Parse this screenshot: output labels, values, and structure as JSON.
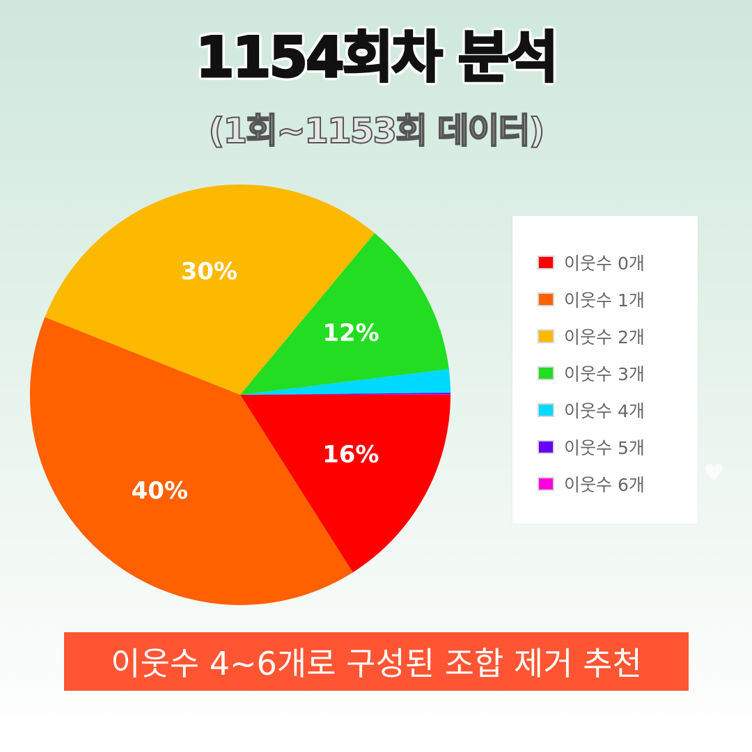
{
  "header": {
    "title": "1154회차 분석",
    "subtitle": "(1회~1153회 데이터)"
  },
  "chart_data": {
    "type": "pie",
    "title": "",
    "start_angle_deg": 90,
    "direction": "clockwise",
    "series": [
      {
        "name": "이웃수 0개",
        "value": 16,
        "label": "16%",
        "color": "#ff0000"
      },
      {
        "name": "이웃수 1개",
        "value": 40,
        "label": "40%",
        "color": "#ff6000"
      },
      {
        "name": "이웃수 2개",
        "value": 30,
        "label": "30%",
        "color": "#fdb900"
      },
      {
        "name": "이웃수 3개",
        "value": 12,
        "label": "12%",
        "color": "#22dd22"
      },
      {
        "name": "이웃수 4개",
        "value": 1.8,
        "label": "",
        "color": "#00d9ff"
      },
      {
        "name": "이웃수 5개",
        "value": 0.1,
        "label": "",
        "color": "#6600ff"
      },
      {
        "name": "이웃수 6개",
        "value": 0.05,
        "label": "",
        "color": "#ff00dd"
      }
    ],
    "legend_position": "right"
  },
  "banner": {
    "text": "이웃수 4~6개로 구성된 조합 제거 추천"
  }
}
